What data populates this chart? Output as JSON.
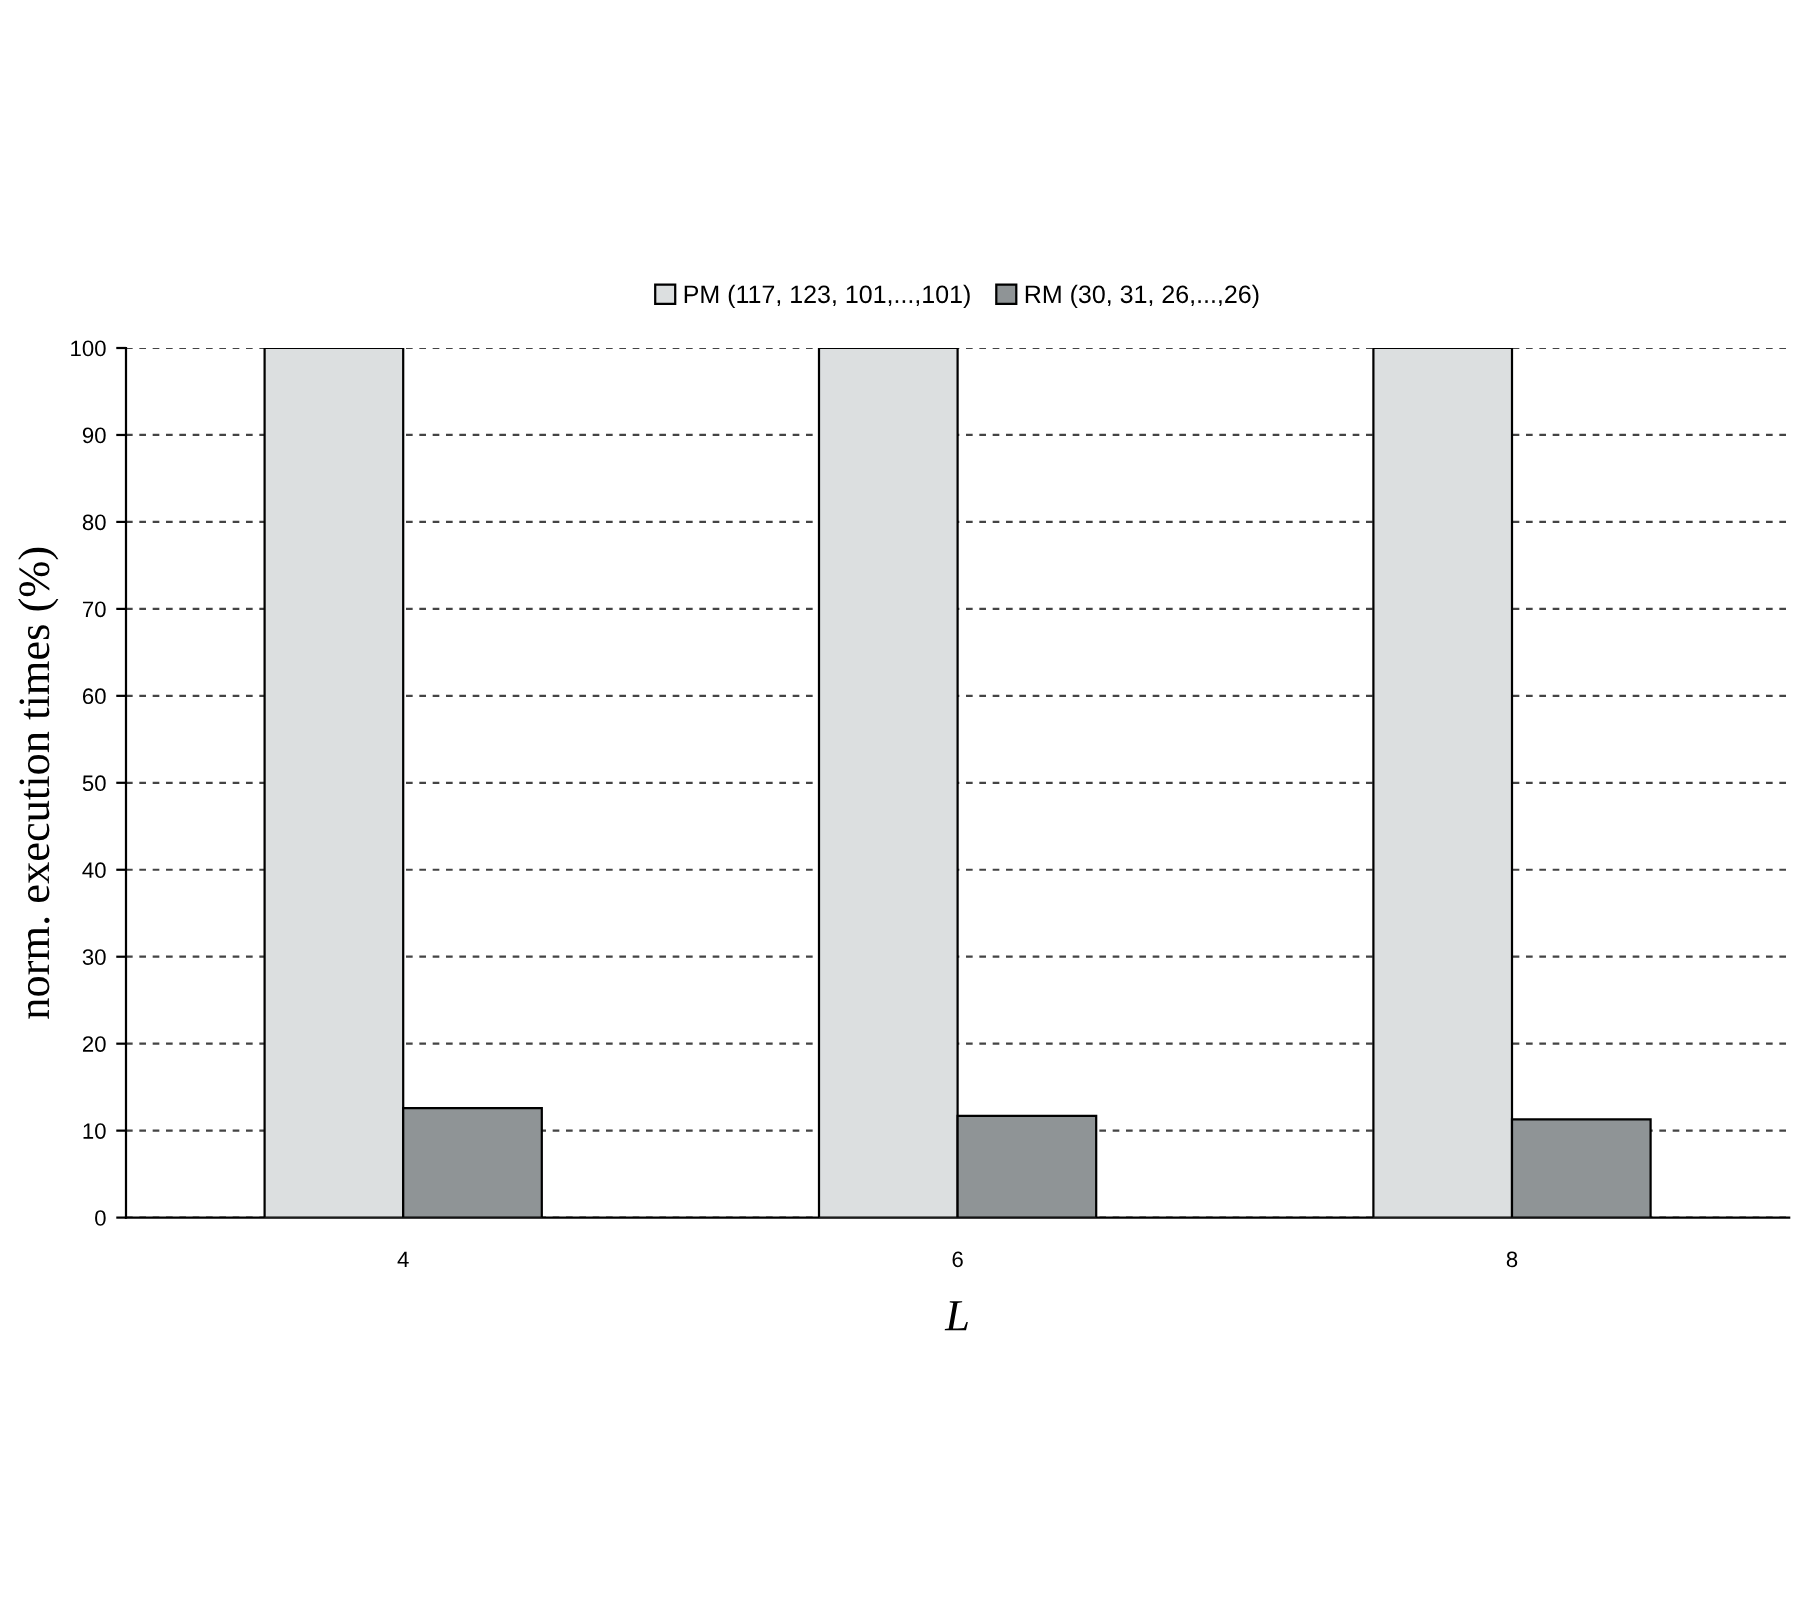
{
  "chart_data": {
    "type": "bar",
    "xlabel": "L",
    "ylabel": "norm. execution times (%)",
    "categories": [
      "4",
      "6",
      "8"
    ],
    "series": [
      {
        "name": "PM (117, 123, 101,...,101)",
        "color": "#dcdfe0",
        "values": [
          100,
          100,
          100
        ]
      },
      {
        "name": "RM (30, 31, 26,...,26)",
        "color": "#8f9496",
        "values": [
          12.6,
          11.7,
          11.3
        ]
      }
    ],
    "ylim": [
      0,
      100
    ],
    "yticks": [
      0,
      10,
      20,
      30,
      40,
      50,
      60,
      70,
      80,
      90,
      100
    ],
    "grid": "y",
    "legend": "top"
  }
}
